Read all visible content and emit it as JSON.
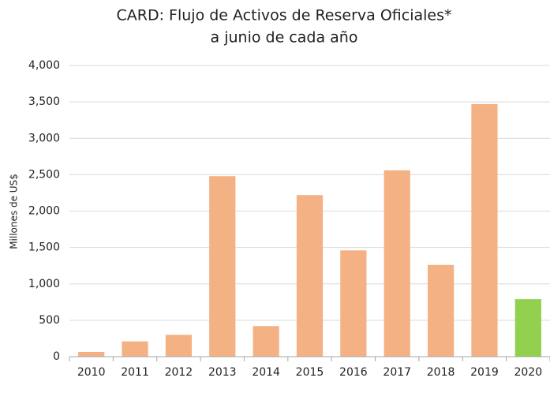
{
  "chart_data": {
    "type": "bar",
    "title": "CARD:  Flujo de Activos de Reserva Oficiales*",
    "subtitle": "a junio de cada año",
    "ylabel": "Millones de US$",
    "categories": [
      "2010",
      "2011",
      "2012",
      "2013",
      "2014",
      "2015",
      "2016",
      "2017",
      "2018",
      "2019",
      "2020"
    ],
    "values": [
      65,
      210,
      300,
      2480,
      420,
      2220,
      1460,
      2560,
      1260,
      3470,
      790
    ],
    "colors": [
      "#f4b183",
      "#f4b183",
      "#f4b183",
      "#f4b183",
      "#f4b183",
      "#f4b183",
      "#f4b183",
      "#f4b183",
      "#f4b183",
      "#f4b183",
      "#92d050"
    ],
    "ylim": [
      0,
      4000
    ],
    "yticks": [
      0,
      500,
      {
        "value": 1000,
        "label": "1,000"
      },
      {
        "value": 1500,
        "label": "1,500"
      },
      {
        "value": 2000,
        "label": "2,000"
      },
      {
        "value": 2500,
        "label": "2,500"
      },
      {
        "value": 3000,
        "label": "3,000"
      },
      {
        "value": 3500,
        "label": "3,500"
      },
      {
        "value": 4000,
        "label": "4,000"
      }
    ],
    "grid": true
  }
}
